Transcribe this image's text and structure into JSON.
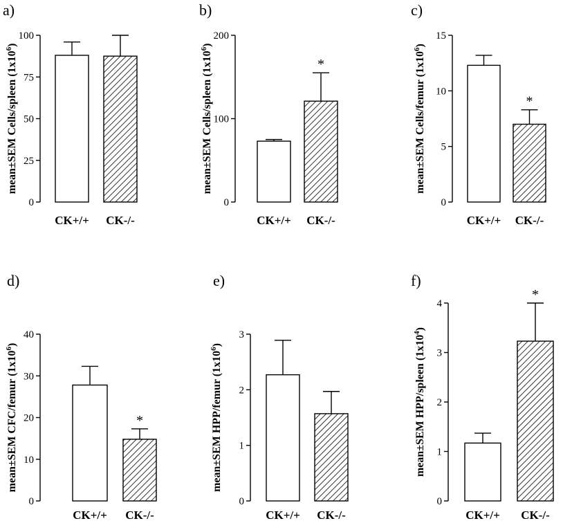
{
  "chart_data": [
    {
      "panel": "a)",
      "type": "bar",
      "categories": [
        "CK+/+",
        "CK-/-"
      ],
      "values": [
        88,
        87.5
      ],
      "errors": [
        8,
        12.5
      ],
      "significance": [
        "",
        ""
      ],
      "ylabel": "mean±SEM Cells/spleen (1x10",
      "ylabel_sup": "6",
      "ylabel_end": ")",
      "ylim": [
        0,
        100
      ],
      "yticks": [
        0,
        25,
        50,
        75,
        100
      ],
      "bar_fill": [
        "white",
        "hatched"
      ]
    },
    {
      "panel": "b)",
      "type": "bar",
      "categories": [
        "CK+/+",
        "CK-/-"
      ],
      "values": [
        73,
        121
      ],
      "errors": [
        2,
        34
      ],
      "significance": [
        "",
        "*"
      ],
      "ylabel": "mean±SEM Cells/spleen (1x10",
      "ylabel_sup": "6",
      "ylabel_end": ")",
      "ylim": [
        0,
        200
      ],
      "yticks": [
        0,
        100,
        200
      ],
      "bar_fill": [
        "white",
        "hatched"
      ]
    },
    {
      "panel": "c)",
      "type": "bar",
      "categories": [
        "CK+/+",
        "CK-/-"
      ],
      "values": [
        12.3,
        7.0
      ],
      "errors": [
        0.9,
        1.3
      ],
      "significance": [
        "",
        "*"
      ],
      "ylabel": "mean±SEM Cells/femur (1x10",
      "ylabel_sup": "6",
      "ylabel_end": ")",
      "ylim": [
        0,
        15
      ],
      "yticks": [
        0,
        5,
        10,
        15
      ],
      "bar_fill": [
        "white",
        "hatched"
      ]
    },
    {
      "panel": "d)",
      "type": "bar",
      "categories": [
        "CK+/+",
        "CK-/-"
      ],
      "values": [
        27.8,
        14.8
      ],
      "errors": [
        4.5,
        2.5
      ],
      "significance": [
        "",
        "*"
      ],
      "ylabel": "mean±SEM CFC/femur (1x10",
      "ylabel_sup": "6",
      "ylabel_end": ")",
      "ylim": [
        0,
        40
      ],
      "yticks": [
        0,
        10,
        20,
        30,
        40
      ],
      "bar_fill": [
        "white",
        "hatched"
      ]
    },
    {
      "panel": "e)",
      "type": "bar",
      "categories": [
        "CK+/+",
        "CK-/-"
      ],
      "values": [
        2.27,
        1.57
      ],
      "errors": [
        0.62,
        0.4
      ],
      "significance": [
        "",
        ""
      ],
      "ylabel": "mean±SEM HPP/femur (1x10",
      "ylabel_sup": "6",
      "ylabel_end": ")",
      "ylim": [
        0,
        3
      ],
      "yticks": [
        0,
        1,
        2,
        3
      ],
      "bar_fill": [
        "white",
        "hatched"
      ]
    },
    {
      "panel": "f)",
      "type": "bar",
      "categories": [
        "CK+/+",
        "CK-/-"
      ],
      "values": [
        1.17,
        3.23
      ],
      "errors": [
        0.2,
        0.77
      ],
      "significance": [
        "",
        "*"
      ],
      "ylabel": "mean±SEM HPP/spleen (1x10",
      "ylabel_sup": "4",
      "ylabel_end": ")",
      "ylim": [
        0,
        4
      ],
      "yticks": [
        0,
        1,
        2,
        3,
        4
      ],
      "bar_fill": [
        "white",
        "hatched"
      ]
    }
  ]
}
